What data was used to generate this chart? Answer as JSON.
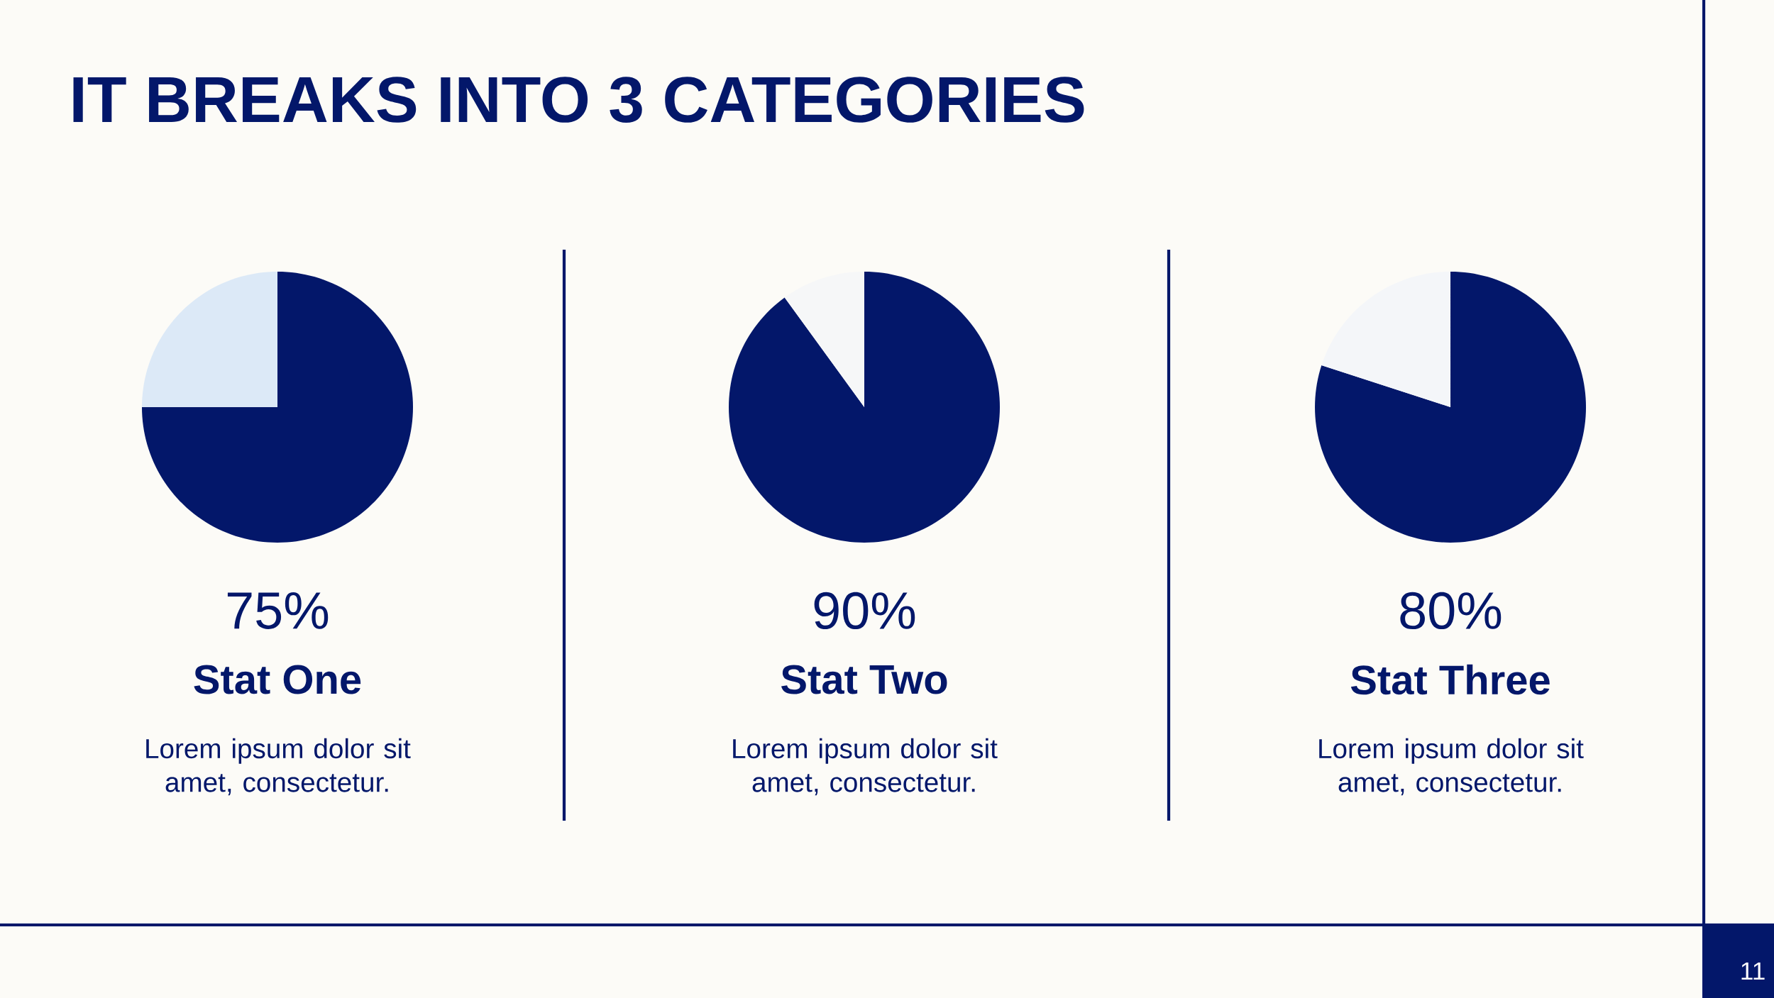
{
  "chart_data": [
    {
      "type": "pie",
      "title": "Stat One",
      "categories": [
        null,
        null
      ],
      "values": [
        75,
        25
      ],
      "colors": [
        "#03176a",
        "#dce9f7"
      ],
      "value_labels": [
        "75%",
        null
      ],
      "annotations": [
        "IT BREAKS INTO 3 CATEGORIES",
        "Lorem ipsum dolor sit amet, consectetur.",
        "11"
      ]
    },
    {
      "type": "pie",
      "title": "Stat Two",
      "categories": [
        null,
        null
      ],
      "values": [
        90,
        10
      ],
      "colors": [
        "#03176a",
        "#f6f7f8"
      ],
      "value_labels": [
        "90%",
        null
      ],
      "annotations": [
        "Lorem ipsum dolor sit amet, consectetur."
      ]
    },
    {
      "type": "pie",
      "title": "Stat Three",
      "categories": [
        null,
        null
      ],
      "values": [
        80,
        20
      ],
      "colors": [
        "#03176a",
        "#f4f6f9"
      ],
      "value_labels": [
        "80%",
        null
      ],
      "annotations": [
        "Lorem ipsum dolor sit amet, consectetur."
      ]
    }
  ]
}
